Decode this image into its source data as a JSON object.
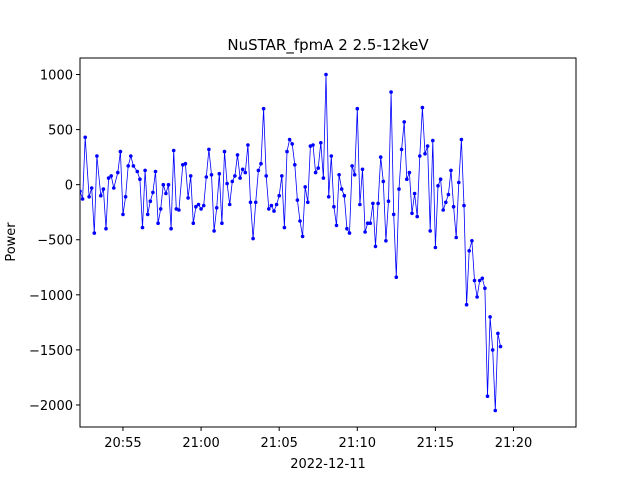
{
  "chart_data": {
    "type": "line",
    "title": "NuSTAR_fpmA 2 2.5-12keV",
    "xlabel": "2022-12-11",
    "ylabel": "Power",
    "x_unit": "time (HH:MM)",
    "xlim": [
      "20:52:15",
      "21:24:00"
    ],
    "ylim": [
      -2200,
      1150
    ],
    "x_ticks": [
      "20:55",
      "21:00",
      "21:05",
      "21:10",
      "21:15",
      "21:20"
    ],
    "y_ticks": [
      1000,
      500,
      0,
      -500,
      -1000,
      -1500,
      -2000
    ],
    "grid": false,
    "marker": "dot",
    "color": "#0000ff",
    "series": [
      {
        "name": "",
        "points": [
          [
            "20:52:15",
            -60
          ],
          [
            "20:52:25",
            -130
          ],
          [
            "20:52:35",
            430
          ],
          [
            "20:52:50",
            -110
          ],
          [
            "20:53:00",
            -30
          ],
          [
            "20:53:10",
            -440
          ],
          [
            "20:53:20",
            260
          ],
          [
            "20:53:35",
            -100
          ],
          [
            "20:53:45",
            -40
          ],
          [
            "20:53:55",
            -400
          ],
          [
            "20:54:05",
            60
          ],
          [
            "20:54:15",
            80
          ],
          [
            "20:54:25",
            -30
          ],
          [
            "20:54:40",
            110
          ],
          [
            "20:54:50",
            300
          ],
          [
            "20:55:00",
            -270
          ],
          [
            "20:55:10",
            -110
          ],
          [
            "20:55:20",
            170
          ],
          [
            "20:55:30",
            260
          ],
          [
            "20:55:40",
            170
          ],
          [
            "20:55:55",
            120
          ],
          [
            "20:56:05",
            50
          ],
          [
            "20:56:15",
            -390
          ],
          [
            "20:56:25",
            130
          ],
          [
            "20:56:35",
            -270
          ],
          [
            "20:56:45",
            -150
          ],
          [
            "20:56:55",
            -70
          ],
          [
            "20:57:05",
            120
          ],
          [
            "20:57:15",
            -350
          ],
          [
            "20:57:25",
            -220
          ],
          [
            "20:57:35",
            0
          ],
          [
            "20:57:45",
            -80
          ],
          [
            "20:57:55",
            0
          ],
          [
            "20:58:05",
            -400
          ],
          [
            "20:58:15",
            310
          ],
          [
            "20:58:25",
            -220
          ],
          [
            "20:58:35",
            -230
          ],
          [
            "20:58:50",
            180
          ],
          [
            "20:59:00",
            190
          ],
          [
            "20:59:10",
            -120
          ],
          [
            "20:59:20",
            80
          ],
          [
            "20:59:30",
            -350
          ],
          [
            "20:59:40",
            -200
          ],
          [
            "20:59:50",
            -180
          ],
          [
            "21:00:00",
            -220
          ],
          [
            "21:00:10",
            -190
          ],
          [
            "21:00:20",
            70
          ],
          [
            "21:00:30",
            320
          ],
          [
            "21:00:40",
            90
          ],
          [
            "21:00:50",
            -420
          ],
          [
            "21:01:00",
            -210
          ],
          [
            "21:01:10",
            100
          ],
          [
            "21:01:20",
            -350
          ],
          [
            "21:01:30",
            300
          ],
          [
            "21:01:40",
            10
          ],
          [
            "21:01:50",
            -180
          ],
          [
            "21:02:00",
            30
          ],
          [
            "21:02:10",
            80
          ],
          [
            "21:02:20",
            270
          ],
          [
            "21:02:30",
            60
          ],
          [
            "21:02:40",
            140
          ],
          [
            "21:02:50",
            110
          ],
          [
            "21:03:00",
            360
          ],
          [
            "21:03:10",
            -160
          ],
          [
            "21:03:20",
            -490
          ],
          [
            "21:03:30",
            -160
          ],
          [
            "21:03:40",
            130
          ],
          [
            "21:03:50",
            190
          ],
          [
            "21:04:00",
            690
          ],
          [
            "21:04:10",
            80
          ],
          [
            "21:04:20",
            -220
          ],
          [
            "21:04:30",
            -190
          ],
          [
            "21:04:40",
            -240
          ],
          [
            "21:04:50",
            -180
          ],
          [
            "21:05:00",
            -100
          ],
          [
            "21:05:10",
            80
          ],
          [
            "21:05:20",
            -390
          ],
          [
            "21:05:30",
            300
          ],
          [
            "21:05:40",
            410
          ],
          [
            "21:05:50",
            370
          ],
          [
            "21:06:00",
            180
          ],
          [
            "21:06:10",
            -140
          ],
          [
            "21:06:20",
            -330
          ],
          [
            "21:06:30",
            -470
          ],
          [
            "21:06:40",
            -20
          ],
          [
            "21:06:50",
            -160
          ],
          [
            "21:07:00",
            350
          ],
          [
            "21:07:10",
            360
          ],
          [
            "21:07:20",
            110
          ],
          [
            "21:07:30",
            150
          ],
          [
            "21:07:40",
            380
          ],
          [
            "21:07:50",
            60
          ],
          [
            "21:08:00",
            1000
          ],
          [
            "21:08:10",
            -110
          ],
          [
            "21:08:20",
            260
          ],
          [
            "21:08:30",
            -200
          ],
          [
            "21:08:40",
            -370
          ],
          [
            "21:08:50",
            90
          ],
          [
            "21:09:00",
            -40
          ],
          [
            "21:09:10",
            -100
          ],
          [
            "21:09:20",
            -400
          ],
          [
            "21:09:30",
            -440
          ],
          [
            "21:09:40",
            170
          ],
          [
            "21:09:50",
            90
          ],
          [
            "21:10:00",
            690
          ],
          [
            "21:10:10",
            -180
          ],
          [
            "21:10:20",
            140
          ],
          [
            "21:10:30",
            -430
          ],
          [
            "21:10:40",
            -350
          ],
          [
            "21:10:50",
            -350
          ],
          [
            "21:11:00",
            -170
          ],
          [
            "21:11:10",
            -560
          ],
          [
            "21:11:20",
            -170
          ],
          [
            "21:11:30",
            250
          ],
          [
            "21:11:40",
            30
          ],
          [
            "21:11:50",
            -510
          ],
          [
            "21:12:00",
            -150
          ],
          [
            "21:12:10",
            840
          ],
          [
            "21:12:20",
            -270
          ],
          [
            "21:12:30",
            -840
          ],
          [
            "21:12:40",
            -40
          ],
          [
            "21:12:50",
            320
          ],
          [
            "21:13:00",
            570
          ],
          [
            "21:13:10",
            50
          ],
          [
            "21:13:20",
            110
          ],
          [
            "21:13:30",
            -260
          ],
          [
            "21:13:40",
            -80
          ],
          [
            "21:13:50",
            -290
          ],
          [
            "21:14:00",
            260
          ],
          [
            "21:14:10",
            700
          ],
          [
            "21:14:20",
            280
          ],
          [
            "21:14:30",
            350
          ],
          [
            "21:14:40",
            -420
          ],
          [
            "21:14:50",
            400
          ],
          [
            "21:15:00",
            -570
          ],
          [
            "21:15:10",
            -10
          ],
          [
            "21:15:20",
            50
          ],
          [
            "21:15:30",
            -230
          ],
          [
            "21:15:40",
            -160
          ],
          [
            "21:15:50",
            -90
          ],
          [
            "21:16:00",
            130
          ],
          [
            "21:16:10",
            -200
          ],
          [
            "21:16:20",
            -480
          ],
          [
            "21:16:30",
            20
          ],
          [
            "21:16:40",
            410
          ],
          [
            "21:16:50",
            -190
          ],
          [
            "21:17:00",
            -1090
          ],
          [
            "21:17:10",
            -600
          ],
          [
            "21:17:20",
            -510
          ],
          [
            "21:17:30",
            -870
          ],
          [
            "21:17:40",
            -1020
          ],
          [
            "21:17:50",
            -870
          ],
          [
            "21:18:00",
            -850
          ],
          [
            "21:18:10",
            -940
          ],
          [
            "21:18:20",
            -1920
          ],
          [
            "21:18:30",
            -1200
          ],
          [
            "21:18:40",
            -1500
          ],
          [
            "21:18:50",
            -2050
          ],
          [
            "21:19:00",
            -1350
          ],
          [
            "21:19:10",
            -1470
          ]
        ]
      }
    ]
  }
}
